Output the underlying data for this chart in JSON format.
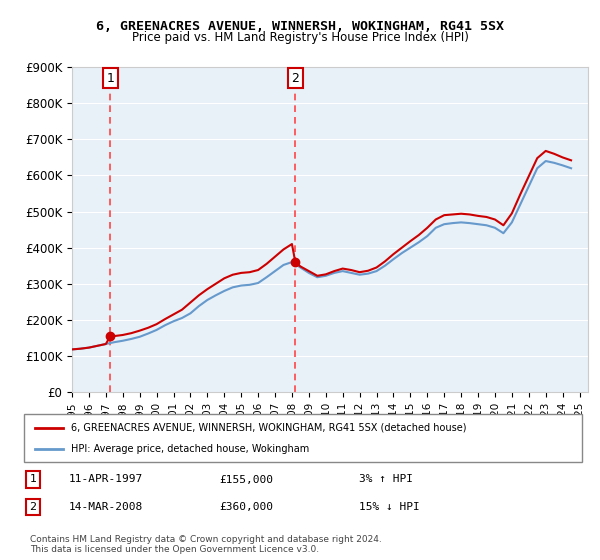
{
  "title_line1": "6, GREENACRES AVENUE, WINNERSH, WOKINGHAM, RG41 5SX",
  "title_line2": "Price paid vs. HM Land Registry's House Price Index (HPI)",
  "ylabel_ticks": [
    "£0",
    "£100K",
    "£200K",
    "£300K",
    "£400K",
    "£500K",
    "£600K",
    "£700K",
    "£800K",
    "£900K"
  ],
  "ylim": [
    0,
    900000
  ],
  "xlim_start": 1995.0,
  "xlim_end": 2025.5,
  "purchase1_x": 1997.27,
  "purchase1_y": 155000,
  "purchase1_label": "1",
  "purchase1_date": "11-APR-1997",
  "purchase1_price": "£155,000",
  "purchase1_hpi": "3% ↑ HPI",
  "purchase2_x": 2008.2,
  "purchase2_y": 360000,
  "purchase2_label": "2",
  "purchase2_date": "14-MAR-2008",
  "purchase2_price": "£360,000",
  "purchase2_hpi": "15% ↓ HPI",
  "line_color_price": "#cc0000",
  "line_color_hpi": "#6699cc",
  "vline_color": "#ff4444",
  "background_color": "#e8f0f8",
  "plot_bg_color": "#e8f0f8",
  "legend_address": "6, GREENACRES AVENUE, WINNERSH, WOKINGHAM, RG41 5SX (detached house)",
  "legend_hpi": "HPI: Average price, detached house, Wokingham",
  "footnote": "Contains HM Land Registry data © Crown copyright and database right 2024.\nThis data is licensed under the Open Government Licence v3.0.",
  "hpi_x": [
    1995.0,
    1995.5,
    1996.0,
    1996.5,
    1997.0,
    1997.5,
    1998.0,
    1998.5,
    1999.0,
    1999.5,
    2000.0,
    2000.5,
    2001.0,
    2001.5,
    2002.0,
    2002.5,
    2003.0,
    2003.5,
    2004.0,
    2004.5,
    2005.0,
    2005.5,
    2006.0,
    2006.5,
    2007.0,
    2007.5,
    2008.0,
    2008.5,
    2009.0,
    2009.5,
    2010.0,
    2010.5,
    2011.0,
    2011.5,
    2012.0,
    2012.5,
    2013.0,
    2013.5,
    2014.0,
    2014.5,
    2015.0,
    2015.5,
    2016.0,
    2016.5,
    2017.0,
    2017.5,
    2018.0,
    2018.5,
    2019.0,
    2019.5,
    2020.0,
    2020.5,
    2021.0,
    2021.5,
    2022.0,
    2022.5,
    2023.0,
    2023.5,
    2024.0,
    2024.5
  ],
  "hpi_y": [
    118000,
    120000,
    123000,
    128000,
    133000,
    138000,
    142000,
    147000,
    153000,
    162000,
    172000,
    185000,
    196000,
    205000,
    218000,
    238000,
    255000,
    268000,
    280000,
    290000,
    295000,
    297000,
    302000,
    318000,
    335000,
    352000,
    360000,
    345000,
    330000,
    318000,
    322000,
    330000,
    335000,
    330000,
    325000,
    328000,
    335000,
    350000,
    368000,
    385000,
    400000,
    415000,
    432000,
    455000,
    465000,
    468000,
    470000,
    468000,
    465000,
    462000,
    455000,
    440000,
    470000,
    520000,
    570000,
    620000,
    640000,
    635000,
    628000,
    620000
  ],
  "price_x": [
    1995.0,
    1995.5,
    1996.0,
    1996.5,
    1997.0,
    1997.27,
    1997.5,
    1998.0,
    1998.5,
    1999.0,
    1999.5,
    2000.0,
    2000.5,
    2001.0,
    2001.5,
    2002.0,
    2002.5,
    2003.0,
    2003.5,
    2004.0,
    2004.5,
    2005.0,
    2005.5,
    2006.0,
    2006.5,
    2007.0,
    2007.5,
    2008.0,
    2008.2,
    2008.5,
    2009.0,
    2009.5,
    2010.0,
    2010.5,
    2011.0,
    2011.5,
    2012.0,
    2012.5,
    2013.0,
    2013.5,
    2014.0,
    2014.5,
    2015.0,
    2015.5,
    2016.0,
    2016.5,
    2017.0,
    2017.5,
    2018.0,
    2018.5,
    2019.0,
    2019.5,
    2020.0,
    2020.5,
    2021.0,
    2021.5,
    2022.0,
    2022.5,
    2023.0,
    2023.5,
    2024.0,
    2024.5
  ],
  "price_y": [
    118000,
    120000,
    123000,
    128000,
    133000,
    155000,
    155000,
    158000,
    163000,
    170000,
    178000,
    188000,
    202000,
    215000,
    228000,
    248000,
    268000,
    285000,
    300000,
    315000,
    325000,
    330000,
    332000,
    338000,
    355000,
    375000,
    395000,
    410000,
    360000,
    348000,
    335000,
    322000,
    326000,
    335000,
    342000,
    338000,
    332000,
    336000,
    345000,
    362000,
    382000,
    400000,
    418000,
    435000,
    455000,
    478000,
    490000,
    492000,
    494000,
    492000,
    488000,
    485000,
    478000,
    462000,
    495000,
    548000,
    598000,
    648000,
    668000,
    660000,
    650000,
    642000
  ],
  "xticks": [
    1995,
    1996,
    1997,
    1998,
    1999,
    2000,
    2001,
    2002,
    2003,
    2004,
    2005,
    2006,
    2007,
    2008,
    2009,
    2010,
    2011,
    2012,
    2013,
    2014,
    2015,
    2016,
    2017,
    2018,
    2019,
    2020,
    2021,
    2022,
    2023,
    2024,
    2025
  ]
}
